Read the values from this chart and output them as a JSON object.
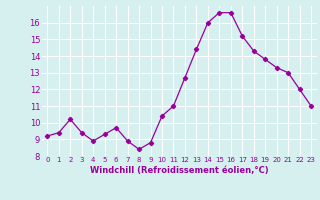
{
  "x": [
    0,
    1,
    2,
    3,
    4,
    5,
    6,
    7,
    8,
    9,
    10,
    11,
    12,
    13,
    14,
    15,
    16,
    17,
    18,
    19,
    20,
    21,
    22,
    23
  ],
  "y": [
    9.2,
    9.4,
    10.2,
    9.4,
    8.9,
    9.3,
    9.7,
    8.9,
    8.4,
    8.8,
    10.4,
    11.0,
    12.7,
    14.4,
    16.0,
    16.6,
    16.6,
    15.2,
    14.3,
    13.8,
    13.3,
    13.0,
    12.0,
    11.0
  ],
  "line_color": "#990099",
  "marker": "D",
  "marker_size": 2.2,
  "bg_color": "#d6f0f0",
  "grid_color": "#ffffff",
  "xlabel": "Windchill (Refroidissement éolien,°C)",
  "xlabel_color": "#990099",
  "tick_color": "#990099",
  "ylim": [
    8,
    17
  ],
  "yticks": [
    8,
    9,
    10,
    11,
    12,
    13,
    14,
    15,
    16
  ],
  "xlim": [
    -0.5,
    23.5
  ],
  "xticks": [
    0,
    1,
    2,
    3,
    4,
    5,
    6,
    7,
    8,
    9,
    10,
    11,
    12,
    13,
    14,
    15,
    16,
    17,
    18,
    19,
    20,
    21,
    22,
    23
  ]
}
